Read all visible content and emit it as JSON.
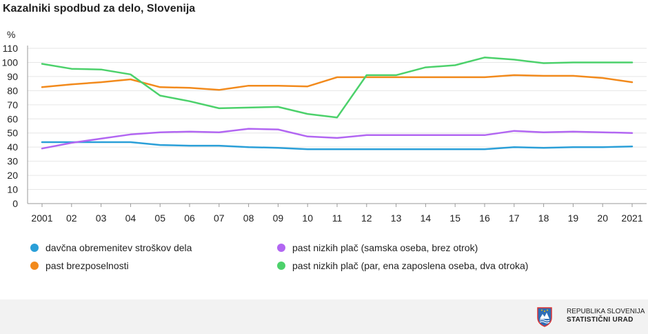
{
  "header": {
    "title": "Kazalniki spodbud za delo, Slovenija"
  },
  "chart_data": {
    "type": "line",
    "title": "Kazalniki spodbud za delo, Slovenija",
    "ylabel": "%",
    "xlabel": "",
    "ylim": [
      0,
      110
    ],
    "yticks": [
      0,
      10,
      20,
      30,
      40,
      50,
      60,
      70,
      80,
      90,
      100,
      110
    ],
    "grid": true,
    "categories": [
      "2001",
      "02",
      "03",
      "04",
      "05",
      "06",
      "07",
      "08",
      "09",
      "10",
      "11",
      "12",
      "13",
      "14",
      "15",
      "16",
      "17",
      "18",
      "19",
      "20",
      "2021"
    ],
    "series": [
      {
        "name": "davčna obremenitev stroškov dela",
        "color": "#2a9fd8",
        "values": [
          43.5,
          43.5,
          43.5,
          43.5,
          41.5,
          41,
          41,
          40,
          39.5,
          38.5,
          38.5,
          38.5,
          38.5,
          38.5,
          38.5,
          38.5,
          40,
          39.5,
          40,
          40,
          40.5
        ]
      },
      {
        "name": "past brezposelnosti",
        "color": "#f28a1c",
        "values": [
          82.5,
          84.5,
          86,
          88,
          82.5,
          82,
          80.5,
          83.5,
          83.5,
          83,
          89.5,
          89.5,
          89.5,
          89.5,
          89.5,
          89.5,
          91,
          90.5,
          90.5,
          89,
          86
        ]
      },
      {
        "name": "past nizkih plač (samska oseba, brez otrok)",
        "color": "#b266f2",
        "values": [
          39,
          43,
          46,
          49,
          50.5,
          51,
          50.5,
          53,
          52.5,
          47.5,
          46.5,
          48.5,
          48.5,
          48.5,
          48.5,
          48.5,
          51.5,
          50.5,
          51,
          50.5,
          50
        ]
      },
      {
        "name": "past nizkih plač (par, ena zaposlena oseba, dva otroka)",
        "color": "#4cd16b",
        "values": [
          99,
          95.5,
          95,
          91.5,
          76.5,
          72.5,
          67.5,
          68,
          68.5,
          63.5,
          61,
          91,
          91,
          96.5,
          98,
          103.5,
          102,
          99.5,
          100,
          100,
          100
        ]
      }
    ],
    "legend_position": "bottom"
  },
  "legend": {
    "items": [
      {
        "label": "davčna obremenitev stroškov dela",
        "color": "#2a9fd8"
      },
      {
        "label": "past brezposelnosti",
        "color": "#f28a1c"
      },
      {
        "label": "past nizkih plač (samska oseba, brez otrok)",
        "color": "#b266f2"
      },
      {
        "label": "past nizkih plač (par, ena zaposlena oseba, dva otroka)",
        "color": "#4cd16b"
      }
    ]
  },
  "footer": {
    "line1": "REPUBLIKA SLOVENIJA",
    "line2": "STATISTIČNI URAD"
  }
}
